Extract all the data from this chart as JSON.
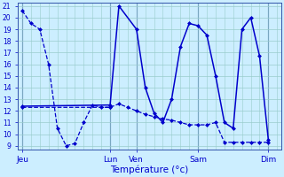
{
  "background_color": "#cceeff",
  "grid_color": "#99cccc",
  "line_color": "#0000cc",
  "xlabel": "Température (°c)",
  "xlabel_color": "#0000cc",
  "ylim": [
    9,
    21
  ],
  "yticks": [
    9,
    10,
    11,
    12,
    13,
    14,
    15,
    16,
    17,
    18,
    19,
    20,
    21
  ],
  "day_labels": [
    "Jeu",
    "Lun",
    "Ven",
    "Sam",
    "Dim"
  ],
  "day_positions": [
    0,
    10,
    13,
    20,
    28
  ],
  "xlim": [
    -0.5,
    29.5
  ],
  "line1_x": [
    0,
    1,
    2,
    3,
    4,
    5,
    6,
    7,
    8,
    9,
    10
  ],
  "line1_y": [
    20.6,
    19.5,
    19.0,
    16.0,
    10.5,
    9.0,
    9.2,
    11.0,
    12.5,
    12.3,
    12.3
  ],
  "line2_x": [
    0,
    10,
    11,
    13,
    14,
    15,
    16,
    17,
    18,
    19,
    20,
    21,
    22,
    23,
    24,
    25,
    26,
    27,
    28
  ],
  "line2_y": [
    12.4,
    12.5,
    21.0,
    19.0,
    14.0,
    11.8,
    11.0,
    13.0,
    17.5,
    19.5,
    19.3,
    18.5,
    15.0,
    11.0,
    10.5,
    19.0,
    20.0,
    16.7,
    9.5
  ],
  "line3_x": [
    0,
    10,
    11,
    12,
    13,
    14,
    15,
    16,
    17,
    18,
    19,
    20,
    21,
    22,
    23,
    24,
    25,
    26,
    27,
    28
  ],
  "line3_y": [
    12.3,
    12.3,
    12.6,
    12.3,
    12.0,
    11.7,
    11.5,
    11.3,
    11.2,
    11.0,
    10.8,
    10.8,
    10.8,
    11.0,
    9.3,
    9.3,
    9.3,
    9.3,
    9.3,
    9.3
  ]
}
